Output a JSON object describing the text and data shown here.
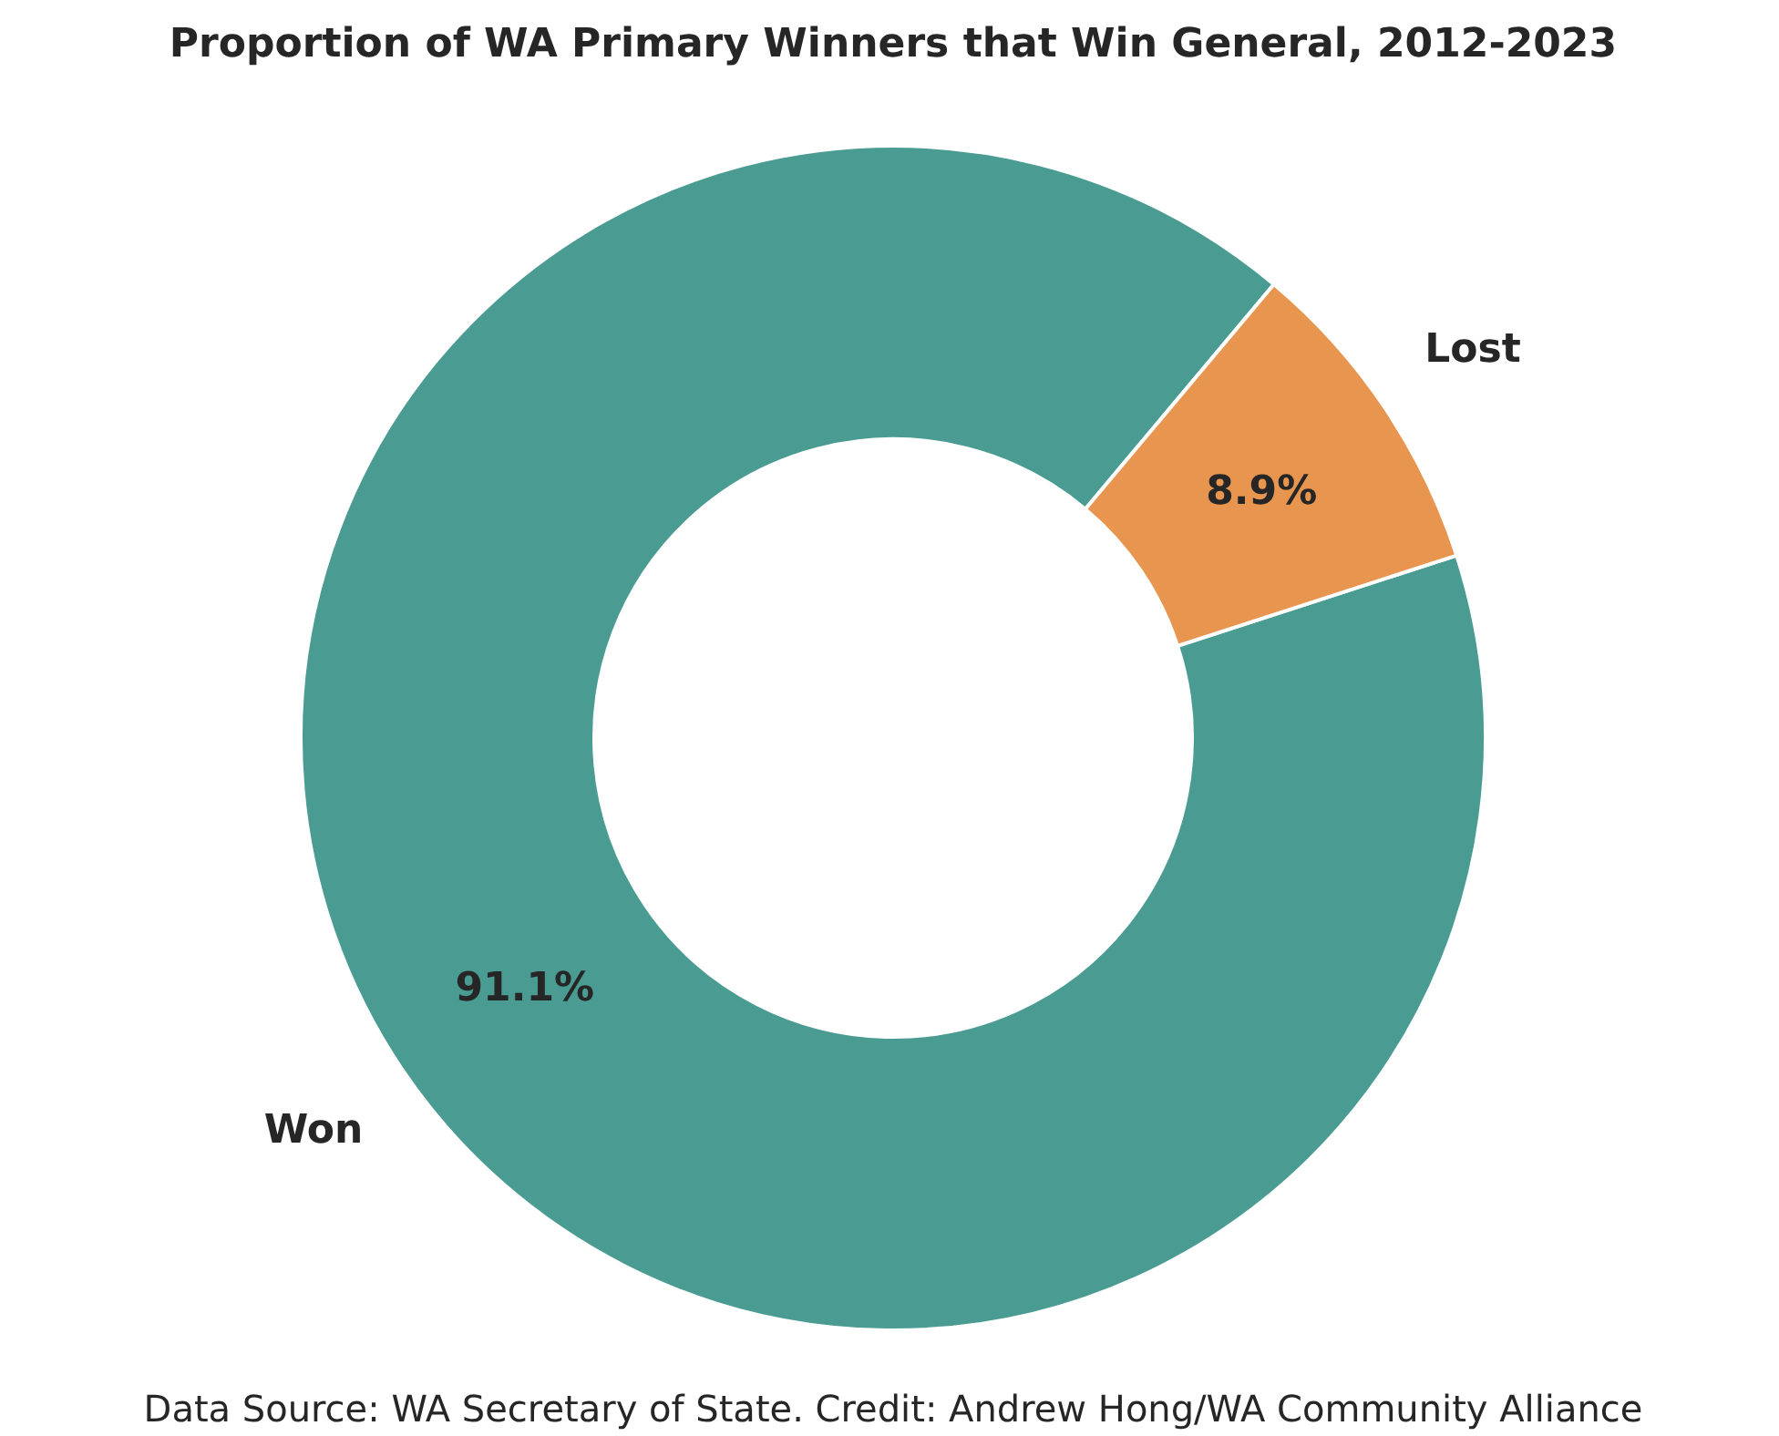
{
  "chart_data": {
    "type": "donut",
    "title": "Proportion of WA Primary Winners that Win General, 2012-2023",
    "categories": [
      "Won",
      "Lost"
    ],
    "values": [
      91.1,
      8.9
    ],
    "colors": [
      "#4a9c92",
      "#e89550"
    ],
    "value_labels": [
      "91.1%",
      "8.9%"
    ],
    "annotations": [
      "Data Source: WA Secretary of State. Credit: Andrew Hong/WA Community Alliance"
    ]
  }
}
